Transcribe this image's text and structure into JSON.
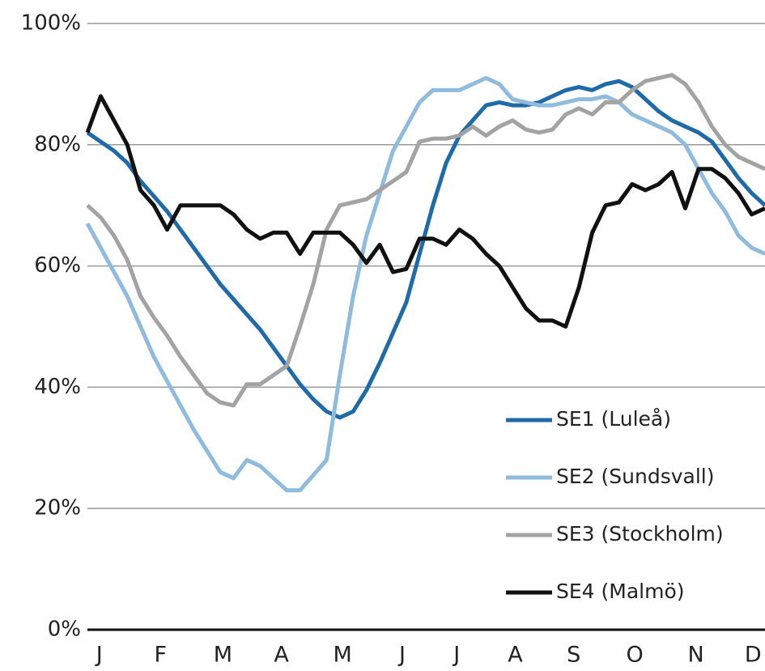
{
  "chart_data": {
    "type": "line",
    "x": [
      1,
      2,
      3,
      4,
      5,
      6,
      7,
      8,
      9,
      10,
      11,
      12,
      13,
      14,
      15,
      16,
      17,
      18,
      19,
      20,
      21,
      22,
      23,
      24,
      25,
      26,
      27,
      28,
      29,
      30,
      31,
      32,
      33,
      34,
      35,
      36,
      37,
      38,
      39,
      40,
      41,
      42,
      43,
      44,
      45,
      46,
      47,
      48,
      49,
      50,
      51,
      52
    ],
    "xlim": [
      1,
      52
    ],
    "xticks": [
      {
        "value": 1.9,
        "label": "J"
      },
      {
        "value": 6.5,
        "label": "F"
      },
      {
        "value": 11.2,
        "label": "M"
      },
      {
        "value": 15.6,
        "label": "A"
      },
      {
        "value": 20.2,
        "label": "M"
      },
      {
        "value": 24.7,
        "label": "J"
      },
      {
        "value": 28.8,
        "label": "J"
      },
      {
        "value": 33.2,
        "label": "A"
      },
      {
        "value": 37.6,
        "label": "S"
      },
      {
        "value": 42.2,
        "label": "O"
      },
      {
        "value": 46.8,
        "label": "N"
      },
      {
        "value": 51.1,
        "label": "D"
      }
    ],
    "ylim": [
      0,
      100
    ],
    "yticks": [
      {
        "value": 0,
        "label": "0%"
      },
      {
        "value": 20,
        "label": "20%"
      },
      {
        "value": 40,
        "label": "40%"
      },
      {
        "value": 60,
        "label": "60%"
      },
      {
        "value": 80,
        "label": "80%"
      },
      {
        "value": 100,
        "label": "100%"
      }
    ],
    "grid": true,
    "legend": "lower right",
    "series": [
      {
        "name": "SE1 (Luleå)",
        "color": "#1f6aa8",
        "values": [
          82,
          80.5,
          79,
          77,
          74,
          71.5,
          69,
          66,
          63,
          60,
          57,
          54.5,
          52,
          49.5,
          46.5,
          43.5,
          40.5,
          38,
          36,
          35,
          36,
          39.5,
          44,
          49,
          54,
          62,
          70,
          77,
          81.5,
          84,
          86.5,
          87,
          86.5,
          86.5,
          87,
          88,
          89,
          89.5,
          89,
          90,
          90.5,
          89.5,
          87.5,
          85.5,
          84,
          83,
          82,
          80.5,
          77.5,
          74.5,
          72,
          70
        ]
      },
      {
        "name": "SE2 (Sundsvall)",
        "color": "#8fbbde",
        "values": [
          67,
          63,
          59,
          55,
          50,
          45,
          41,
          37,
          33,
          29.5,
          26,
          25,
          28,
          27,
          25,
          23,
          23,
          25.5,
          28,
          42,
          55,
          65,
          72,
          79,
          83,
          87,
          89,
          89,
          89,
          90,
          91,
          90,
          87.5,
          87,
          86.5,
          86.5,
          87,
          87.5,
          87.5,
          88,
          87,
          85,
          84,
          83,
          82,
          80,
          76,
          72,
          69,
          65,
          63,
          62
        ]
      },
      {
        "name": "SE3 (Stockholm)",
        "color": "#a3a3a3",
        "values": [
          70,
          68,
          65,
          61,
          55,
          51.5,
          48.5,
          45,
          42,
          39,
          37.5,
          37,
          40.5,
          40.5,
          42,
          43.5,
          50,
          57,
          66,
          70,
          70.5,
          71,
          72.5,
          74,
          75.5,
          80.5,
          81,
          81,
          81.5,
          83,
          81.5,
          83,
          84,
          82.5,
          82,
          82.5,
          85,
          86,
          85,
          87,
          87,
          89,
          90.5,
          91,
          91.5,
          90,
          87,
          83,
          80,
          78,
          77,
          76
        ]
      },
      {
        "name": "SE4 (Malmö)",
        "color": "#111111",
        "values": [
          82,
          88,
          84,
          80,
          72.5,
          70,
          66,
          70,
          70,
          70,
          70,
          68.5,
          66,
          64.5,
          65.5,
          65.5,
          62,
          65.5,
          65.5,
          65.5,
          63.5,
          60.5,
          63.5,
          59,
          59.5,
          64.5,
          64.5,
          63.5,
          66,
          64.5,
          62,
          60,
          56.5,
          53,
          51,
          51,
          50,
          56.5,
          65.5,
          70,
          70.5,
          73.5,
          72.5,
          73.5,
          75.5,
          69.5,
          76,
          76,
          74.5,
          72,
          68.5,
          69.5
        ]
      }
    ]
  }
}
